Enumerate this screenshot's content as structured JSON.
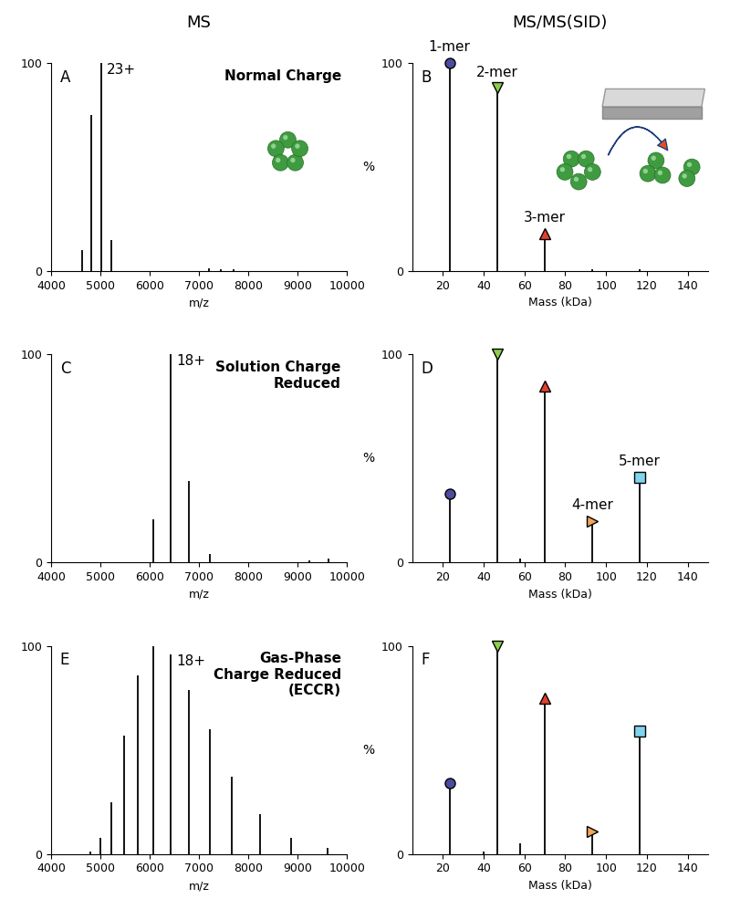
{
  "column_titles": [
    "MS",
    "MS/MS(SID)"
  ],
  "chart_data": [
    {
      "type": "stem",
      "panel": "A",
      "title": "Normal Charge",
      "x_label": "m/z",
      "xlim": [
        4000,
        10000
      ],
      "xticks": [
        4000,
        5000,
        6000,
        7000,
        8000,
        9000,
        10000
      ],
      "ylim": [
        0,
        100
      ],
      "yticks": [
        0,
        100
      ],
      "series": [
        {
          "color": "#000000",
          "marker": "none",
          "x": [
            4620,
            4820,
            5020,
            5230,
            7200,
            7450,
            7700
          ],
          "values": [
            10,
            75,
            100,
            15,
            1.5,
            1,
            0.8
          ]
        }
      ],
      "annotations": [
        {
          "text": "23+",
          "x": 5020,
          "y": 100
        }
      ]
    },
    {
      "type": "stem",
      "panel": "B",
      "x_label": "Mass (kDa)",
      "y_label": "%",
      "xlim": [
        5,
        150
      ],
      "xticks": [
        20,
        40,
        60,
        80,
        100,
        120,
        140
      ],
      "ylim": [
        0,
        100
      ],
      "yticks": [
        0,
        100
      ],
      "series": [
        {
          "color": "#000000",
          "marker": "none",
          "x": [
            93.2,
            116.5
          ],
          "values": [
            1,
            1
          ]
        },
        {
          "color": "#4b4ba0",
          "marker": "circle",
          "x": [
            23.3
          ],
          "values": [
            100
          ]
        },
        {
          "color": "#8ccf4d",
          "marker": "triangle_down",
          "x": [
            46.6
          ],
          "values": [
            88
          ]
        },
        {
          "color": "#e0412f",
          "marker": "triangle_up",
          "x": [
            69.9
          ],
          "values": [
            18
          ]
        }
      ],
      "annotations": [
        {
          "text": "1-mer",
          "x": 23.3,
          "y": 100
        },
        {
          "text": "2-mer",
          "x": 46.6,
          "y": 88
        },
        {
          "text": "3-mer",
          "x": 69.9,
          "y": 18
        }
      ]
    },
    {
      "type": "stem",
      "panel": "C",
      "title": "Solution Charge\nReduced",
      "x_label": "m/z",
      "xlim": [
        4000,
        10000
      ],
      "xticks": [
        4000,
        5000,
        6000,
        7000,
        8000,
        9000,
        10000
      ],
      "ylim": [
        0,
        100
      ],
      "yticks": [
        0,
        100
      ],
      "series": [
        {
          "color": "#000000",
          "marker": "none",
          "x": [
            6080,
            6430,
            6800,
            7220,
            9230,
            9620
          ],
          "values": [
            21,
            100,
            39,
            4,
            1,
            2
          ]
        }
      ],
      "annotations": [
        {
          "text": "18+",
          "x": 6430,
          "y": 100
        }
      ]
    },
    {
      "type": "stem",
      "panel": "D",
      "x_label": "Mass (kDa)",
      "y_label": "%",
      "xlim": [
        5,
        150
      ],
      "xticks": [
        20,
        40,
        60,
        80,
        100,
        120,
        140
      ],
      "ylim": [
        0,
        100
      ],
      "yticks": [
        0,
        100
      ],
      "series": [
        {
          "color": "#000000",
          "marker": "none",
          "x": [
            58
          ],
          "values": [
            2
          ]
        },
        {
          "color": "#4b4ba0",
          "marker": "circle",
          "x": [
            23.3
          ],
          "values": [
            33
          ]
        },
        {
          "color": "#8ccf4d",
          "marker": "triangle_down",
          "x": [
            46.6
          ],
          "values": [
            100
          ]
        },
        {
          "color": "#e0412f",
          "marker": "triangle_up",
          "x": [
            69.9
          ],
          "values": [
            85
          ]
        },
        {
          "color": "#f2a65a",
          "marker": "triangle_right",
          "x": [
            93.2
          ],
          "values": [
            20
          ]
        },
        {
          "color": "#80d4ee",
          "marker": "square",
          "x": [
            116.5
          ],
          "values": [
            41
          ]
        }
      ],
      "annotations": [
        {
          "text": "4-mer",
          "x": 93.2,
          "y": 20
        },
        {
          "text": "5-mer",
          "x": 116.5,
          "y": 41
        }
      ]
    },
    {
      "type": "stem",
      "panel": "E",
      "title": "Gas-Phase\nCharge Reduced\n(ECCR)",
      "x_label": "m/z",
      "xlim": [
        4000,
        10000
      ],
      "xticks": [
        4000,
        5000,
        6000,
        7000,
        8000,
        9000,
        10000
      ],
      "ylim": [
        0,
        100
      ],
      "yticks": [
        0,
        100
      ],
      "series": [
        {
          "color": "#000000",
          "marker": "none",
          "x": [
            4790,
            5000,
            5220,
            5480,
            5760,
            6080,
            6430,
            6800,
            7220,
            7670,
            8230,
            8860,
            9610
          ],
          "values": [
            1,
            8,
            25,
            57,
            86,
            100,
            96,
            79,
            60,
            37,
            19,
            8,
            3
          ]
        }
      ],
      "annotations": [
        {
          "text": "18+",
          "x": 6430,
          "y": 96
        }
      ]
    },
    {
      "type": "stem",
      "panel": "F",
      "x_label": "Mass (kDa)",
      "y_label": "%",
      "xlim": [
        5,
        150
      ],
      "xticks": [
        20,
        40,
        60,
        80,
        100,
        120,
        140
      ],
      "ylim": [
        0,
        100
      ],
      "yticks": [
        0,
        100
      ],
      "series": [
        {
          "color": "#000000",
          "marker": "none",
          "x": [
            40,
            58
          ],
          "values": [
            1,
            5
          ]
        },
        {
          "color": "#4b4ba0",
          "marker": "circle",
          "x": [
            23.3
          ],
          "values": [
            34
          ]
        },
        {
          "color": "#8ccf4d",
          "marker": "triangle_down",
          "x": [
            46.6
          ],
          "values": [
            100
          ]
        },
        {
          "color": "#e0412f",
          "marker": "triangle_up",
          "x": [
            69.9
          ],
          "values": [
            75
          ]
        },
        {
          "color": "#f2a65a",
          "marker": "triangle_right",
          "x": [
            93.2
          ],
          "values": [
            11
          ]
        },
        {
          "color": "#80d4ee",
          "marker": "square",
          "x": [
            116.5
          ],
          "values": [
            59
          ]
        }
      ],
      "annotations": []
    }
  ]
}
